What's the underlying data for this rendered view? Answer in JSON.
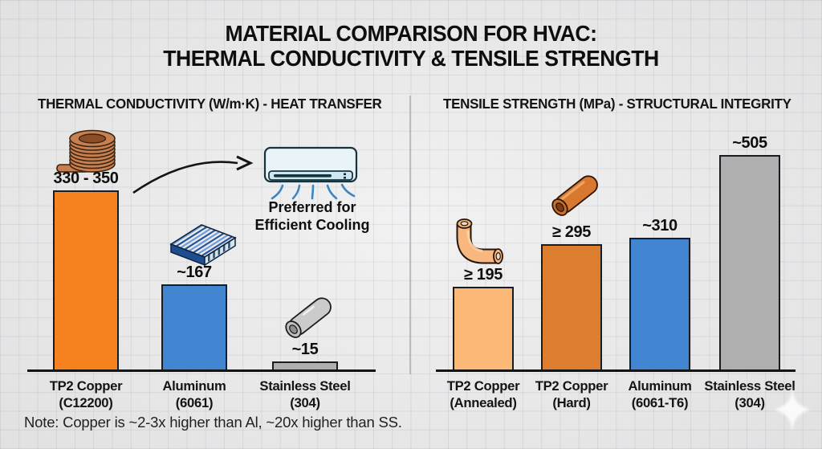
{
  "title": {
    "line1": "MATERIAL COMPARISON FOR HVAC:",
    "line2": "THERMAL CONDUCTIVITY & TENSILE STRENGTH"
  },
  "annotation": {
    "line1": "Preferred for",
    "line2": "Efficient Cooling"
  },
  "note": "Note: Copper is ~2-3x higher than Al, ~20x higher than SS.",
  "icons": {
    "copper_coil": "copper-coil-icon",
    "heatsink": "heatsink-icon",
    "steel_pipe": "steel-pipe-icon",
    "copper_pipe": "copper-pipe-icon",
    "copper_elbow": "copper-elbow-icon",
    "air_conditioner": "air-conditioner-icon",
    "curved_arrow": "curved-arrow-icon",
    "sparkle": "sparkle-watermark-icon"
  },
  "colors": {
    "copper_orange": "#F5821F",
    "copper_hard_orange": "#DC7D2F",
    "copper_annealed_peach": "#FBB877",
    "aluminum_blue": "#4285D0",
    "steel_gray": "#AFAFAF",
    "bar_border": "#191C22",
    "background_paper": "#EDEDEE",
    "ink": "#111111"
  },
  "chart_data": [
    {
      "type": "bar",
      "title": "THERMAL CONDUCTIVITY (W/m·K) - HEAT TRANSFER",
      "ylabel": "Thermal conductivity (W/m·K)",
      "ylim": [
        0,
        350
      ],
      "grid": false,
      "annotation": "Preferred for Efficient Cooling",
      "bars": [
        {
          "category": "TP2 Copper",
          "spec": "(C12200)",
          "value_label": "330 - 350",
          "value": 350,
          "value_range": [
            330,
            350
          ],
          "color": "#F5821F"
        },
        {
          "category": "Aluminum",
          "spec": "(6061)",
          "value_label": "~167",
          "value": 167,
          "color": "#4285D0"
        },
        {
          "category": "Stainless Steel",
          "spec": "(304)",
          "value_label": "~15",
          "value": 15,
          "color": "#AFAFAF"
        }
      ]
    },
    {
      "type": "bar",
      "title": "TENSILE STRENGTH (MPa) - STRUCTURAL INTEGRITY",
      "ylabel": "Tensile strength (MPa)",
      "ylim": [
        0,
        505
      ],
      "grid": false,
      "bars": [
        {
          "category": "TP2 Copper",
          "spec": "(Annealed)",
          "value_label": "≥ 195",
          "value": 195,
          "color": "#FBB877"
        },
        {
          "category": "TP2 Copper",
          "spec": "(Hard)",
          "value_label": "≥ 295",
          "value": 295,
          "color": "#DC7D2F"
        },
        {
          "category": "Aluminum",
          "spec": "(6061-T6)",
          "value_label": "~310",
          "value": 310,
          "color": "#4285D0"
        },
        {
          "category": "Stainless Steel",
          "spec": "(304)",
          "value_label": "~505",
          "value": 505,
          "color": "#AFAFAF"
        }
      ]
    }
  ]
}
